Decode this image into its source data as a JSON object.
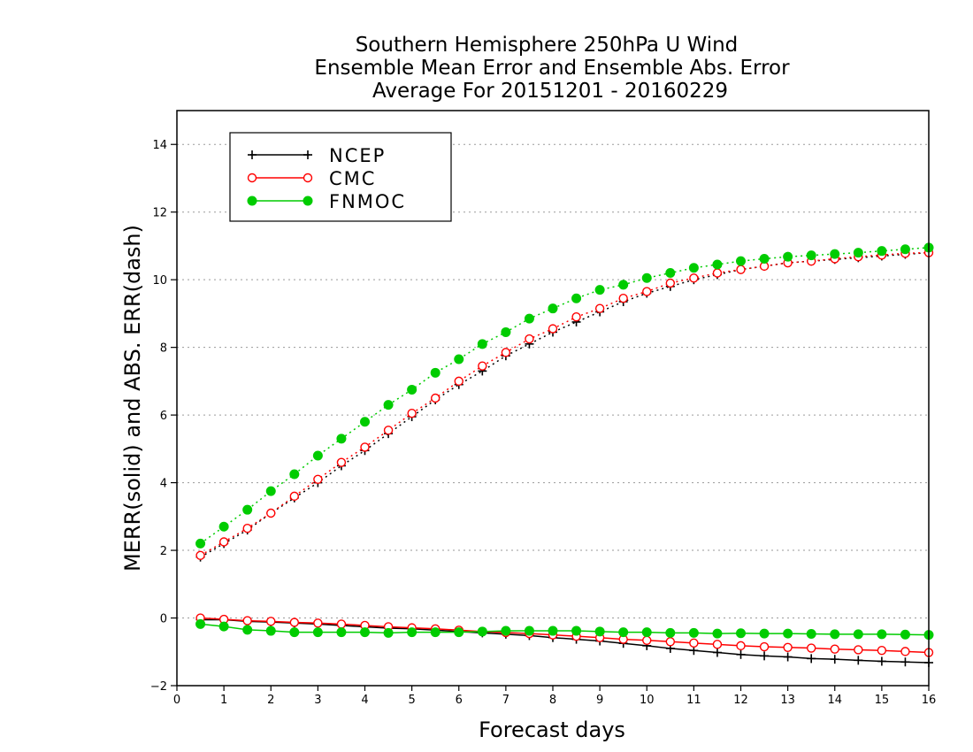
{
  "chart_data": {
    "type": "line",
    "title_lines": [
      "Southern Hemisphere 250hPa U Wind",
      "Ensemble Mean Error and Ensemble Abs. Error",
      "Average For 20151201 - 20160229"
    ],
    "xlabel": "Forecast days",
    "ylabel": "MERR(solid) and ABS. ERR(dash)",
    "xlim": [
      0,
      16
    ],
    "ylim": [
      -2,
      15
    ],
    "x_ticks": [
      0,
      1,
      2,
      3,
      4,
      5,
      6,
      7,
      8,
      9,
      10,
      11,
      12,
      13,
      14,
      15,
      16
    ],
    "y_ticks": [
      -2,
      0,
      2,
      4,
      6,
      8,
      10,
      12,
      14
    ],
    "y_grid": true,
    "legend_position": "top-left",
    "x": [
      0.5,
      1,
      1.5,
      2,
      2.5,
      3,
      3.5,
      4,
      4.5,
      5,
      5.5,
      6,
      6.5,
      7,
      7.5,
      8,
      8.5,
      9,
      9.5,
      10,
      10.5,
      11,
      11.5,
      12,
      12.5,
      13,
      13.5,
      14,
      14.5,
      15,
      15.5,
      16
    ],
    "series": [
      {
        "name": "NCEP",
        "color": "#000000",
        "marker": "plus",
        "merr": [
          -0.05,
          -0.05,
          -0.1,
          -0.12,
          -0.15,
          -0.18,
          -0.22,
          -0.26,
          -0.3,
          -0.32,
          -0.36,
          -0.4,
          -0.44,
          -0.48,
          -0.52,
          -0.58,
          -0.63,
          -0.68,
          -0.75,
          -0.82,
          -0.9,
          -0.96,
          -1.02,
          -1.08,
          -1.12,
          -1.15,
          -1.2,
          -1.22,
          -1.25,
          -1.28,
          -1.3,
          -1.32
        ],
        "abs_err": [
          1.8,
          2.2,
          2.6,
          3.1,
          3.55,
          4.0,
          4.5,
          4.95,
          5.45,
          5.95,
          6.45,
          6.9,
          7.3,
          7.75,
          8.1,
          8.45,
          8.75,
          9.05,
          9.35,
          9.6,
          9.8,
          10.0,
          10.15,
          10.3,
          10.4,
          10.5,
          10.55,
          10.6,
          10.65,
          10.7,
          10.75,
          10.8
        ]
      },
      {
        "name": "CMC",
        "color": "#ff0000",
        "marker": "open-circle",
        "merr": [
          0.0,
          -0.04,
          -0.08,
          -0.1,
          -0.13,
          -0.15,
          -0.18,
          -0.22,
          -0.26,
          -0.29,
          -0.32,
          -0.36,
          -0.4,
          -0.43,
          -0.46,
          -0.5,
          -0.54,
          -0.58,
          -0.63,
          -0.66,
          -0.7,
          -0.74,
          -0.78,
          -0.82,
          -0.85,
          -0.87,
          -0.89,
          -0.92,
          -0.94,
          -0.96,
          -0.99,
          -1.02
        ],
        "abs_err": [
          1.85,
          2.25,
          2.65,
          3.1,
          3.6,
          4.1,
          4.6,
          5.05,
          5.55,
          6.05,
          6.5,
          7.0,
          7.45,
          7.85,
          8.25,
          8.55,
          8.9,
          9.15,
          9.45,
          9.65,
          9.9,
          10.05,
          10.2,
          10.3,
          10.4,
          10.5,
          10.55,
          10.62,
          10.68,
          10.73,
          10.78,
          10.8
        ]
      },
      {
        "name": "FNMOC",
        "color": "#00cc00",
        "marker": "filled-circle",
        "merr": [
          -0.18,
          -0.25,
          -0.35,
          -0.38,
          -0.42,
          -0.42,
          -0.42,
          -0.42,
          -0.44,
          -0.42,
          -0.42,
          -0.42,
          -0.4,
          -0.38,
          -0.38,
          -0.38,
          -0.38,
          -0.4,
          -0.42,
          -0.42,
          -0.44,
          -0.44,
          -0.46,
          -0.45,
          -0.46,
          -0.46,
          -0.47,
          -0.48,
          -0.48,
          -0.48,
          -0.49,
          -0.5
        ],
        "abs_err": [
          2.2,
          2.7,
          3.2,
          3.75,
          4.25,
          4.8,
          5.3,
          5.8,
          6.3,
          6.75,
          7.25,
          7.65,
          8.1,
          8.45,
          8.85,
          9.15,
          9.45,
          9.7,
          9.85,
          10.05,
          10.2,
          10.35,
          10.45,
          10.55,
          10.62,
          10.68,
          10.72,
          10.76,
          10.8,
          10.85,
          10.9,
          10.95
        ]
      }
    ]
  }
}
